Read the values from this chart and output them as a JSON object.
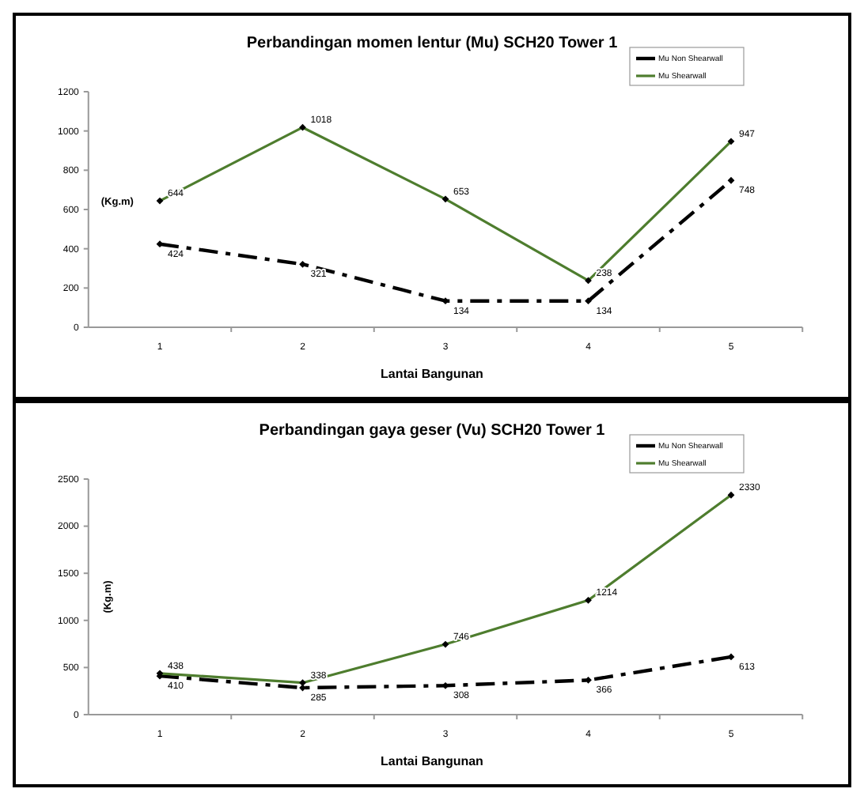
{
  "chart_data": [
    {
      "type": "line",
      "title": "Perbandingan momen lentur (Mu) SCH20 Tower 1",
      "xlabel": "Lantai Bangunan",
      "ylabel": "(Kg.m)",
      "categories": [
        "1",
        "2",
        "3",
        "4",
        "5"
      ],
      "series": [
        {
          "name": "Mu Non Shearwall",
          "color": "#000000",
          "values": [
            424,
            321,
            134,
            134,
            748
          ],
          "line_style": "dashed"
        },
        {
          "name": "Mu Shearwall",
          "color": "#4e7d2e",
          "values": [
            644,
            1018,
            653,
            238,
            947
          ],
          "line_style": "solid"
        }
      ],
      "ylim": [
        0,
        1200
      ],
      "yticks": [
        0,
        200,
        400,
        600,
        800,
        1000,
        1200
      ],
      "grid": false,
      "legend": "top right",
      "marker": "diamond",
      "data_labels": true
    },
    {
      "type": "line",
      "title": "Perbandingan gaya geser (Vu) SCH20 Tower 1",
      "xlabel": "Lantai Bangunan",
      "ylabel": "(Kg.m)",
      "categories": [
        "1",
        "2",
        "3",
        "4",
        "5"
      ],
      "series": [
        {
          "name": "Mu Non Shearwall",
          "color": "#000000",
          "values": [
            410,
            285,
            308,
            366,
            613
          ],
          "line_style": "dashed"
        },
        {
          "name": "Mu Shearwall",
          "color": "#4e7d2e",
          "values": [
            438,
            338,
            746,
            1214,
            2330
          ],
          "line_style": "solid"
        }
      ],
      "ylim": [
        0,
        2500
      ],
      "yticks": [
        0,
        500,
        1000,
        1500,
        2000,
        2500
      ],
      "grid": false,
      "legend": "top right",
      "marker": "diamond",
      "data_labels": true
    }
  ]
}
